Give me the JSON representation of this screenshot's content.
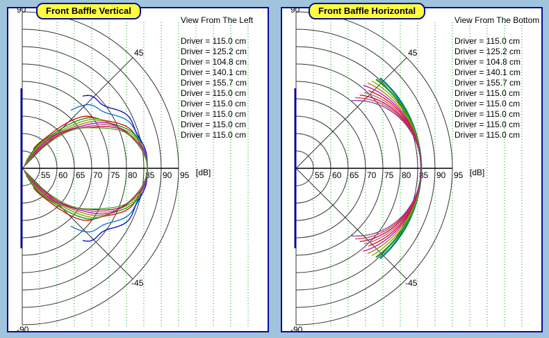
{
  "chart_data": [
    {
      "type": "polar",
      "title": "Front Baffle Vertical",
      "subtitle": "View From The Left",
      "unit": "[dB]",
      "r_ticks": [
        55,
        60,
        65,
        70,
        75,
        80,
        85,
        90,
        95
      ],
      "angle_labels": [
        "90",
        "45",
        "-45",
        "-90"
      ],
      "drivers": [
        "Driver = 115.0 cm",
        "Driver = 125.2 cm",
        "Driver = 104.8 cm",
        "Driver = 140.1 cm",
        "Driver = 155.7 cm",
        "Driver = 115.0 cm",
        "Driver = 115.0 cm",
        "Driver = 115.0 cm",
        "Driver = 115.0 cm",
        "Driver = 115.0 cm"
      ],
      "on_axis_db": 86,
      "colors": [
        "#0000cc",
        "#0070d0",
        "#e00000",
        "#009000",
        "#70a000",
        "#a08000",
        "#c000c0",
        "#b06080",
        "#c00040",
        "#50a030"
      ]
    },
    {
      "type": "polar",
      "title": "Front Baffle Horizontal",
      "subtitle": "View From The Bottom",
      "unit": "[dB]",
      "r_ticks": [
        55,
        60,
        65,
        70,
        75,
        80,
        85,
        90,
        95
      ],
      "angle_labels": [
        "90",
        "45",
        "-45",
        "-90"
      ],
      "drivers": [
        "Driver = 115.0 cm",
        "Driver = 125.2 cm",
        "Driver = 104.8 cm",
        "Driver = 140.1 cm",
        "Driver = 155.7 cm",
        "Driver = 115.0 cm",
        "Driver = 115.0 cm",
        "Driver = 115.0 cm",
        "Driver = 115.0 cm",
        "Driver = 115.0 cm"
      ],
      "on_axis_db": 86,
      "colors": [
        "#008080",
        "#20a020",
        "#80a000",
        "#a08000",
        "#c000c0",
        "#e00000",
        "#b06080",
        "#c00040",
        "#d04040",
        "#9030a0"
      ]
    }
  ]
}
